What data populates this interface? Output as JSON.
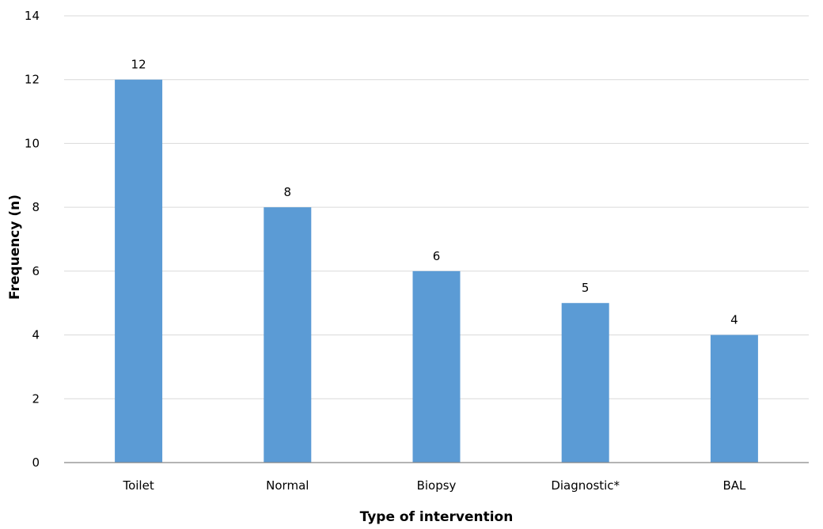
{
  "chart_data": {
    "type": "bar",
    "categories": [
      "Toilet",
      "Normal",
      "Biopsy",
      "Diagnostic*",
      "BAL"
    ],
    "values": [
      12,
      8,
      6,
      5,
      4
    ],
    "xlabel": "Type of intervention",
    "ylabel": "Frequency  (n)",
    "ylim": [
      0,
      14
    ],
    "yticks": [
      0,
      2,
      4,
      6,
      8,
      10,
      12,
      14
    ],
    "grid": true,
    "data_labels": true,
    "legend": "none",
    "bar_color": "#5b9bd5",
    "grid_color": "#d9d9d9",
    "axis_color": "#868686"
  }
}
